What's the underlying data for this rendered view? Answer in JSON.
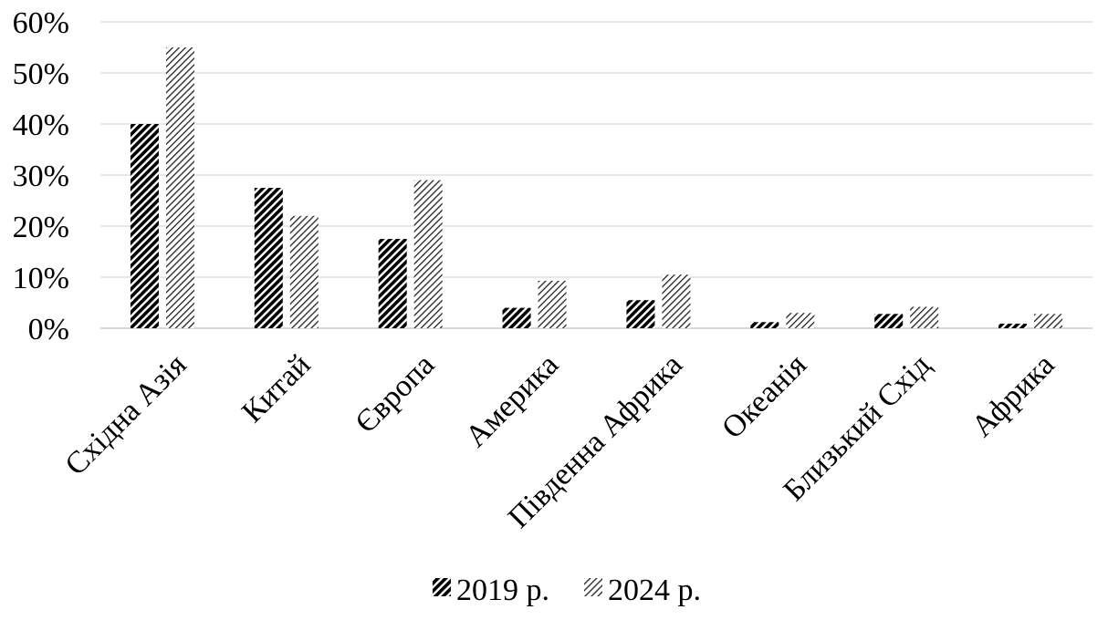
{
  "chart_data": {
    "type": "bar",
    "title": "",
    "xlabel": "",
    "ylabel": "",
    "ylim": [
      0,
      0.6
    ],
    "ytick_step": 0.1,
    "ytick_format": "percent",
    "grid": "horizontal",
    "legend_position": "bottom",
    "categories": [
      "Східна Азія",
      "Китай",
      "Європа",
      "Америка",
      "Південна Африка",
      "Океанія",
      "Близький Схід",
      "Африка"
    ],
    "series": [
      {
        "name": "2019 р.",
        "pattern": "dense-diagonal-hatch",
        "color": "#000000",
        "values": [
          0.4,
          0.275,
          0.175,
          0.04,
          0.055,
          0.012,
          0.028,
          0.009
        ]
      },
      {
        "name": "2024 р.",
        "pattern": "light-diagonal-hatch",
        "color": "#000000",
        "values": [
          0.55,
          0.22,
          0.29,
          0.093,
          0.105,
          0.03,
          0.042,
          0.028
        ]
      }
    ]
  }
}
